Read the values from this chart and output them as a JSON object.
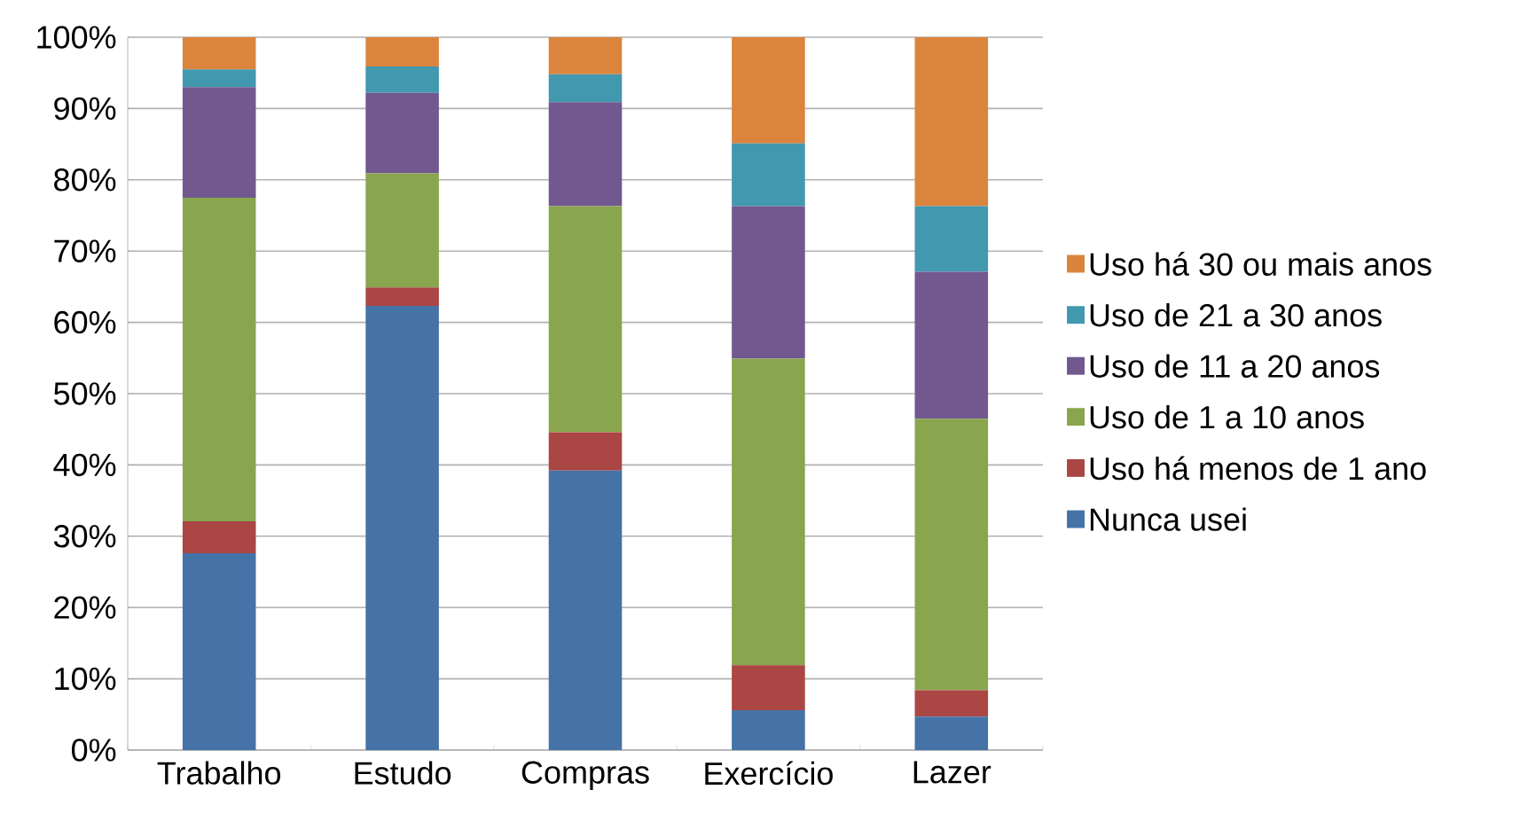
{
  "chart_data": {
    "type": "bar",
    "stacked": true,
    "categories": [
      "Trabalho",
      "Estudo",
      "Compras",
      "Exercício",
      "Lazer"
    ],
    "series": [
      {
        "name": "Nunca usei",
        "color": "#4572a7",
        "values": [
          27.6,
          62.3,
          39.2,
          5.6,
          4.7
        ]
      },
      {
        "name": "Uso há menos de 1 ano",
        "color": "#aa4643",
        "values": [
          4.5,
          2.6,
          5.4,
          6.3,
          3.7
        ]
      },
      {
        "name": "Uso de 1 a 10 anos",
        "color": "#89a54e",
        "values": [
          45.4,
          16.0,
          31.7,
          43.0,
          38.1
        ]
      },
      {
        "name": "Uso de 11 a 20 anos",
        "color": "#71588f",
        "values": [
          15.5,
          11.3,
          14.6,
          21.4,
          20.6
        ]
      },
      {
        "name": "Uso de 21 a 30 anos",
        "color": "#4198af",
        "values": [
          2.5,
          3.7,
          3.9,
          8.8,
          9.2
        ]
      },
      {
        "name": "Uso há 30 ou mais anos",
        "color": "#db843d",
        "values": [
          4.5,
          4.1,
          5.2,
          14.9,
          23.7
        ]
      }
    ],
    "ylim": [
      0,
      100
    ],
    "yticks": [
      {
        "value": 0,
        "label": "0%"
      },
      {
        "value": 10,
        "label": "10%"
      },
      {
        "value": 20,
        "label": "20%"
      },
      {
        "value": 30,
        "label": "30%"
      },
      {
        "value": 40,
        "label": "40%"
      },
      {
        "value": 50,
        "label": "50%"
      },
      {
        "value": 60,
        "label": "60%"
      },
      {
        "value": 70,
        "label": "70%"
      },
      {
        "value": 80,
        "label": "80%"
      },
      {
        "value": 90,
        "label": "90%"
      },
      {
        "value": 100,
        "label": "100%"
      }
    ],
    "grid": "y",
    "legend": "right"
  }
}
